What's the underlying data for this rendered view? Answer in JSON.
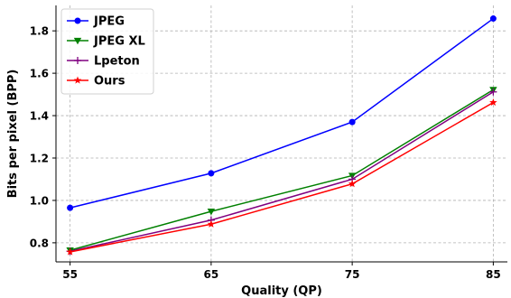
{
  "chart_data": {
    "type": "line",
    "xlabel": "Quality (QP)",
    "ylabel": "Bits per pixel (BPP)",
    "x": [
      55,
      65,
      75,
      85
    ],
    "xticks": [
      "55",
      "65",
      "75",
      "85"
    ],
    "xlim": [
      54,
      86
    ],
    "ylim": [
      0.71,
      1.92
    ],
    "yticks": [
      "0.8",
      "1.0",
      "1.2",
      "1.4",
      "1.6",
      "1.8"
    ],
    "grid": true,
    "legend_position": "top-left",
    "series": [
      {
        "name": "JPEG",
        "color": "#0000ff",
        "marker": "circle",
        "values": [
          0.965,
          1.128,
          1.37,
          1.858
        ]
      },
      {
        "name": "JPEG XL",
        "color": "#008000",
        "marker": "triangle-down",
        "values": [
          0.765,
          0.948,
          1.117,
          1.522
        ]
      },
      {
        "name": "Lpeton",
        "color": "#800080",
        "marker": "plus",
        "values": [
          0.76,
          0.907,
          1.1,
          1.512
        ]
      },
      {
        "name": "Ours",
        "color": "#ff0000",
        "marker": "star",
        "values": [
          0.757,
          0.888,
          1.078,
          1.462
        ]
      }
    ]
  }
}
